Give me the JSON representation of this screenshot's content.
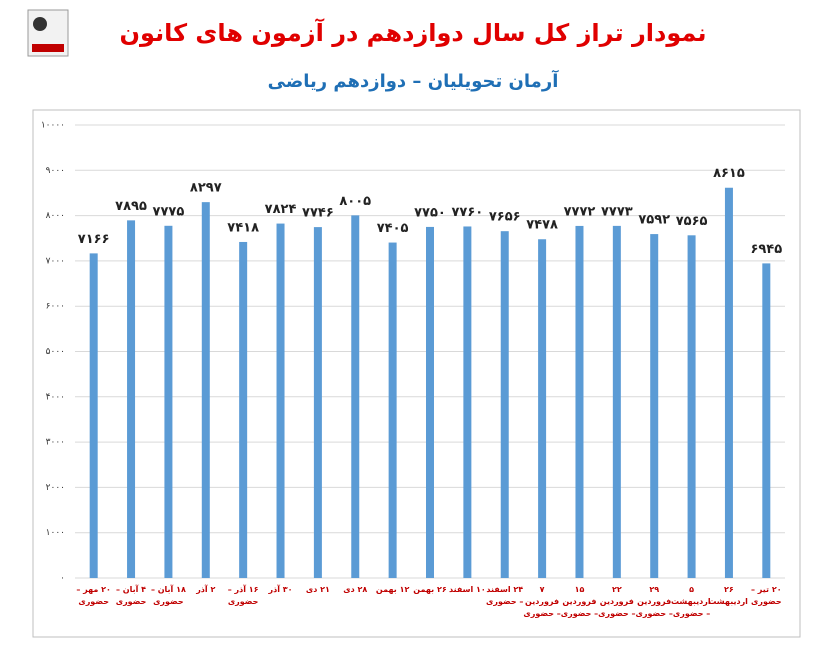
{
  "chart_data": {
    "type": "bar",
    "title": "نمودار تراز کل سال دوازدهم در آزمون های کانون",
    "subtitle": "آرمان تحویلیان – دوازدهم ریاضی",
    "categories": [
      "۲۰ مهر – حضوری",
      "۴ آبان – حضوری",
      "۱۸ آبان – حضوری",
      "۲ آذر",
      "۱۶ آذر – حضوری",
      "۳۰ آذر",
      "۲۱ دی",
      "۲۸ دی",
      "۱۲ بهمن",
      "۲۶ بهمن",
      "۱۰ اسفند",
      "۲۴ اسفند – حضوری",
      "۷ فروردین – حضوری",
      "۱۵ فروردین – حضوری",
      "۲۲ فروردین – حضوری",
      "۲۹ فروردین – حضوری",
      "۵ اردیبهشت – حضوری",
      "۲۶ اردیبهشت",
      "۲۰ تیر – حضوری"
    ],
    "values": [
      7166,
      7895,
      7775,
      8297,
      7418,
      7824,
      7746,
      8005,
      7405,
      7750,
      7760,
      7656,
      7478,
      7772,
      7773,
      7592,
      7565,
      8615,
      6945
    ],
    "value_labels": [
      "۷۱۶۶",
      "۷۸۹۵",
      "۷۷۷۵",
      "۸۲۹۷",
      "۷۴۱۸",
      "۷۸۲۴",
      "۷۷۴۶",
      "۸۰۰۵",
      "۷۴۰۵",
      "۷۷۵۰",
      "۷۷۶۰",
      "۷۶۵۶",
      "۷۴۷۸",
      "۷۷۷۲",
      "۷۷۷۳",
      "۷۵۹۲",
      "۷۵۶۵",
      "۸۶۱۵",
      "۶۹۴۵"
    ],
    "color": "#5b9bd5",
    "ylim": [
      0,
      10000
    ],
    "yticks": [
      {
        "value": 0,
        "label": "۰"
      },
      {
        "value": 1000,
        "label": "۱۰۰۰"
      },
      {
        "value": 2000,
        "label": "۲۰۰۰"
      },
      {
        "value": 3000,
        "label": "۳۰۰۰"
      },
      {
        "value": 4000,
        "label": "۴۰۰۰"
      },
      {
        "value": 5000,
        "label": "۵۰۰۰"
      },
      {
        "value": 6000,
        "label": "۶۰۰۰"
      },
      {
        "value": 7000,
        "label": "۷۰۰۰"
      },
      {
        "value": 8000,
        "label": "۸۰۰۰"
      },
      {
        "value": 9000,
        "label": "۹۰۰۰"
      },
      {
        "value": 10000,
        "label": "۱۰۰۰۰"
      }
    ],
    "grid": true
  }
}
